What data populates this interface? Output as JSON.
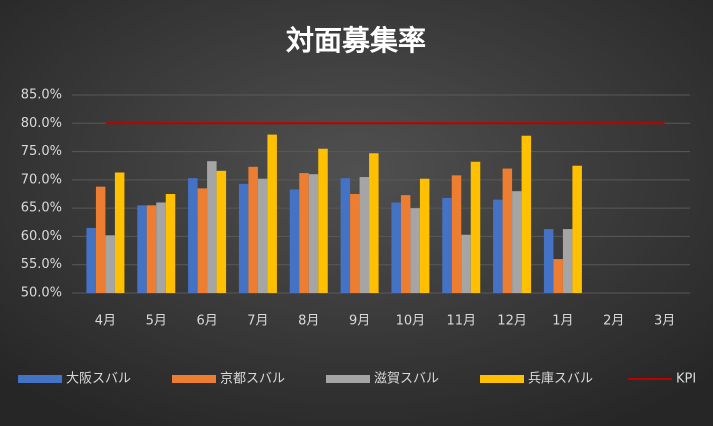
{
  "chart_data": {
    "type": "bar",
    "title": "対面募集率",
    "categories": [
      "4月",
      "5月",
      "6月",
      "7月",
      "8月",
      "9月",
      "10月",
      "11月",
      "12月",
      "1月",
      "2月",
      "3月"
    ],
    "series": [
      {
        "name": "大阪スバル",
        "color": "#4472c4",
        "values": [
          61.5,
          65.5,
          70.3,
          69.3,
          68.3,
          70.3,
          66,
          66.8,
          66.5,
          61.3,
          null,
          null
        ]
      },
      {
        "name": "京都スバル",
        "color": "#ed7d31",
        "values": [
          68.8,
          65.5,
          68.5,
          72.3,
          71.2,
          67.5,
          67.3,
          70.8,
          72,
          56,
          null,
          null
        ]
      },
      {
        "name": "滋賀スバル",
        "color": "#a5a5a5",
        "values": [
          60.2,
          66,
          73.3,
          70.2,
          71,
          70.5,
          65,
          60.3,
          68,
          61.3,
          null,
          null
        ]
      },
      {
        "name": "兵庫スバル",
        "color": "#ffc000",
        "values": [
          71.3,
          67.5,
          71.6,
          78,
          75.5,
          74.7,
          70.2,
          73.2,
          77.8,
          72.5,
          null,
          null
        ]
      },
      {
        "name": "KPI",
        "color": "#c00000",
        "type": "line",
        "values": [
          80,
          80,
          80,
          80,
          80,
          80,
          80,
          80,
          80,
          80,
          80,
          80
        ]
      }
    ],
    "ylim": [
      50,
      85
    ],
    "yticks": [
      {
        "value": 50,
        "label": "50.0%"
      },
      {
        "value": 55,
        "label": "55.0%"
      },
      {
        "value": 60,
        "label": "60.0%"
      },
      {
        "value": 65,
        "label": "65.0%"
      },
      {
        "value": 70,
        "label": "70.0%"
      },
      {
        "value": 75,
        "label": "75.0%"
      },
      {
        "value": 80,
        "label": "80.0%"
      },
      {
        "value": 85,
        "label": "85.0%"
      }
    ],
    "grid": true,
    "legend": "bottom"
  }
}
